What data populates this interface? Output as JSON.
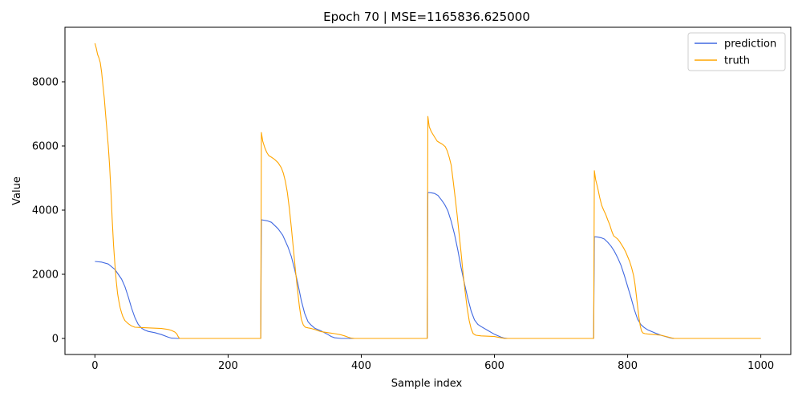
{
  "chart_data": {
    "type": "line",
    "title": "Epoch 70 | MSE=1165836.625000",
    "xlabel": "Sample index",
    "ylabel": "Value",
    "xlim": [
      -45,
      1045
    ],
    "ylim": [
      -500,
      9700
    ],
    "xticks": [
      0,
      200,
      400,
      600,
      800,
      1000
    ],
    "yticks": [
      0,
      2000,
      4000,
      6000,
      8000
    ],
    "grid": false,
    "legend_position": "top-right",
    "series": [
      {
        "name": "prediction",
        "color": "#4169e1",
        "points": [
          [
            0,
            2400
          ],
          [
            10,
            2380
          ],
          [
            20,
            2320
          ],
          [
            30,
            2150
          ],
          [
            40,
            1850
          ],
          [
            45,
            1620
          ],
          [
            50,
            1300
          ],
          [
            55,
            950
          ],
          [
            60,
            650
          ],
          [
            65,
            440
          ],
          [
            70,
            320
          ],
          [
            75,
            260
          ],
          [
            80,
            220
          ],
          [
            90,
            180
          ],
          [
            100,
            120
          ],
          [
            110,
            40
          ],
          [
            115,
            10
          ],
          [
            125,
            0
          ],
          [
            200,
            0
          ],
          [
            249,
            0
          ],
          [
            250,
            3700
          ],
          [
            260,
            3660
          ],
          [
            265,
            3620
          ],
          [
            275,
            3420
          ],
          [
            282,
            3220
          ],
          [
            290,
            2850
          ],
          [
            295,
            2550
          ],
          [
            300,
            2150
          ],
          [
            305,
            1680
          ],
          [
            310,
            1180
          ],
          [
            315,
            780
          ],
          [
            320,
            520
          ],
          [
            325,
            410
          ],
          [
            330,
            320
          ],
          [
            340,
            230
          ],
          [
            350,
            120
          ],
          [
            355,
            60
          ],
          [
            360,
            20
          ],
          [
            370,
            0
          ],
          [
            400,
            0
          ],
          [
            499,
            0
          ],
          [
            500,
            4550
          ],
          [
            505,
            4540
          ],
          [
            510,
            4520
          ],
          [
            515,
            4460
          ],
          [
            520,
            4330
          ],
          [
            525,
            4180
          ],
          [
            530,
            3980
          ],
          [
            535,
            3650
          ],
          [
            540,
            3250
          ],
          [
            545,
            2750
          ],
          [
            550,
            2200
          ],
          [
            555,
            1700
          ],
          [
            560,
            1250
          ],
          [
            565,
            850
          ],
          [
            570,
            580
          ],
          [
            575,
            440
          ],
          [
            580,
            370
          ],
          [
            590,
            250
          ],
          [
            600,
            130
          ],
          [
            610,
            40
          ],
          [
            615,
            10
          ],
          [
            620,
            0
          ],
          [
            700,
            0
          ],
          [
            749,
            0
          ],
          [
            750,
            3170
          ],
          [
            755,
            3160
          ],
          [
            760,
            3140
          ],
          [
            765,
            3100
          ],
          [
            770,
            3000
          ],
          [
            775,
            2880
          ],
          [
            780,
            2720
          ],
          [
            785,
            2520
          ],
          [
            790,
            2280
          ],
          [
            795,
            1970
          ],
          [
            800,
            1620
          ],
          [
            805,
            1280
          ],
          [
            810,
            900
          ],
          [
            815,
            600
          ],
          [
            820,
            430
          ],
          [
            825,
            340
          ],
          [
            830,
            270
          ],
          [
            840,
            180
          ],
          [
            850,
            100
          ],
          [
            860,
            40
          ],
          [
            865,
            10
          ],
          [
            870,
            0
          ],
          [
            1000,
            0
          ]
        ]
      },
      {
        "name": "truth",
        "color": "#ffa500",
        "points": [
          [
            0,
            9200
          ],
          [
            2,
            9050
          ],
          [
            4,
            8850
          ],
          [
            6,
            8750
          ],
          [
            8,
            8600
          ],
          [
            10,
            8300
          ],
          [
            12,
            7900
          ],
          [
            14,
            7500
          ],
          [
            16,
            7000
          ],
          [
            18,
            6500
          ],
          [
            20,
            6000
          ],
          [
            22,
            5400
          ],
          [
            24,
            4600
          ],
          [
            26,
            3700
          ],
          [
            28,
            2900
          ],
          [
            30,
            2300
          ],
          [
            32,
            1800
          ],
          [
            34,
            1400
          ],
          [
            36,
            1150
          ],
          [
            38,
            950
          ],
          [
            40,
            800
          ],
          [
            42,
            680
          ],
          [
            45,
            560
          ],
          [
            50,
            460
          ],
          [
            55,
            390
          ],
          [
            60,
            350
          ],
          [
            70,
            340
          ],
          [
            80,
            330
          ],
          [
            90,
            320
          ],
          [
            100,
            310
          ],
          [
            110,
            280
          ],
          [
            115,
            250
          ],
          [
            120,
            200
          ],
          [
            123,
            140
          ],
          [
            125,
            60
          ],
          [
            127,
            0
          ],
          [
            200,
            0
          ],
          [
            249,
            0
          ],
          [
            250,
            6420
          ],
          [
            252,
            6150
          ],
          [
            255,
            5950
          ],
          [
            258,
            5800
          ],
          [
            261,
            5700
          ],
          [
            265,
            5650
          ],
          [
            270,
            5580
          ],
          [
            275,
            5480
          ],
          [
            280,
            5320
          ],
          [
            283,
            5150
          ],
          [
            286,
            4900
          ],
          [
            289,
            4550
          ],
          [
            292,
            4050
          ],
          [
            295,
            3450
          ],
          [
            298,
            2800
          ],
          [
            301,
            2150
          ],
          [
            304,
            1550
          ],
          [
            307,
            1000
          ],
          [
            310,
            600
          ],
          [
            313,
            420
          ],
          [
            316,
            350
          ],
          [
            320,
            330
          ],
          [
            325,
            310
          ],
          [
            330,
            280
          ],
          [
            335,
            240
          ],
          [
            340,
            210
          ],
          [
            350,
            180
          ],
          [
            360,
            150
          ],
          [
            370,
            110
          ],
          [
            375,
            80
          ],
          [
            380,
            40
          ],
          [
            385,
            10
          ],
          [
            390,
            0
          ],
          [
            499,
            0
          ],
          [
            500,
            6920
          ],
          [
            502,
            6600
          ],
          [
            505,
            6450
          ],
          [
            508,
            6350
          ],
          [
            511,
            6250
          ],
          [
            514,
            6150
          ],
          [
            518,
            6100
          ],
          [
            522,
            6050
          ],
          [
            526,
            5980
          ],
          [
            529,
            5850
          ],
          [
            532,
            5650
          ],
          [
            535,
            5400
          ],
          [
            538,
            4900
          ],
          [
            541,
            4400
          ],
          [
            544,
            3850
          ],
          [
            547,
            3250
          ],
          [
            550,
            2650
          ],
          [
            553,
            2000
          ],
          [
            556,
            1450
          ],
          [
            559,
            950
          ],
          [
            562,
            560
          ],
          [
            565,
            300
          ],
          [
            568,
            150
          ],
          [
            572,
            100
          ],
          [
            580,
            80
          ],
          [
            590,
            70
          ],
          [
            600,
            60
          ],
          [
            605,
            40
          ],
          [
            610,
            20
          ],
          [
            615,
            0
          ],
          [
            749,
            0
          ],
          [
            750,
            5230
          ],
          [
            752,
            4950
          ],
          [
            755,
            4700
          ],
          [
            758,
            4400
          ],
          [
            761,
            4150
          ],
          [
            764,
            4000
          ],
          [
            767,
            3870
          ],
          [
            770,
            3700
          ],
          [
            773,
            3550
          ],
          [
            776,
            3350
          ],
          [
            779,
            3200
          ],
          [
            782,
            3150
          ],
          [
            785,
            3100
          ],
          [
            788,
            3020
          ],
          [
            791,
            2920
          ],
          [
            794,
            2820
          ],
          [
            797,
            2700
          ],
          [
            800,
            2550
          ],
          [
            803,
            2400
          ],
          [
            806,
            2200
          ],
          [
            809,
            1950
          ],
          [
            811,
            1700
          ],
          [
            813,
            1350
          ],
          [
            815,
            1000
          ],
          [
            817,
            650
          ],
          [
            819,
            380
          ],
          [
            821,
            230
          ],
          [
            823,
            170
          ],
          [
            826,
            150
          ],
          [
            830,
            140
          ],
          [
            840,
            120
          ],
          [
            850,
            100
          ],
          [
            860,
            50
          ],
          [
            865,
            20
          ],
          [
            870,
            0
          ],
          [
            1000,
            0
          ]
        ]
      }
    ]
  }
}
